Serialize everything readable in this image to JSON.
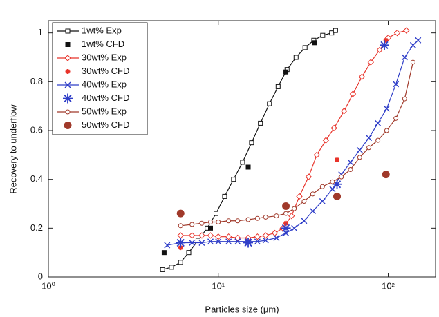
{
  "chart_data": {
    "type": "line",
    "xlabel": "Particles size (μm)",
    "ylabel": "Recovery to underflow",
    "xscale": "log",
    "xlim": [
      1,
      190
    ],
    "ylim": [
      0,
      1.05
    ],
    "xticks": [
      {
        "value": 1,
        "label": "10⁰"
      },
      {
        "value": 10,
        "label": "10¹"
      },
      {
        "value": 100,
        "label": "10²"
      }
    ],
    "yticks": [
      0,
      0.2,
      0.4,
      0.6,
      0.8,
      1
    ],
    "legend": "upper-left",
    "series": [
      {
        "name": "1wt% Exp",
        "color": "#111111",
        "marker": "square-open",
        "line": true,
        "x": [
          4.7,
          5.3,
          6,
          6.7,
          7.6,
          8.6,
          9.7,
          10.9,
          12.3,
          13.9,
          15.7,
          17.7,
          20,
          22.5,
          25.4,
          28.7,
          32.4,
          36.5,
          41.2,
          46.5,
          49
        ],
        "values": [
          0.03,
          0.04,
          0.06,
          0.1,
          0.15,
          0.2,
          0.26,
          0.33,
          0.4,
          0.47,
          0.55,
          0.63,
          0.71,
          0.78,
          0.85,
          0.9,
          0.94,
          0.97,
          0.99,
          1.0,
          1.01
        ]
      },
      {
        "name": "1wt% CFD",
        "color": "#111111",
        "marker": "square-filled",
        "line": false,
        "x": [
          4.8,
          9,
          15,
          25,
          37
        ],
        "values": [
          0.1,
          0.2,
          0.45,
          0.84,
          0.96
        ]
      },
      {
        "name": "30wt% Exp",
        "color": "#e8332a",
        "marker": "diamond-open",
        "line": true,
        "x": [
          6,
          7,
          8,
          9,
          10,
          11.5,
          13,
          15,
          17,
          19,
          21.5,
          24,
          27,
          30,
          34,
          38,
          43,
          48,
          55,
          62,
          70,
          79,
          89,
          100,
          113,
          128
        ],
        "values": [
          0.17,
          0.17,
          0.17,
          0.17,
          0.165,
          0.165,
          0.16,
          0.16,
          0.165,
          0.17,
          0.18,
          0.2,
          0.25,
          0.33,
          0.41,
          0.5,
          0.56,
          0.61,
          0.68,
          0.75,
          0.82,
          0.88,
          0.93,
          0.98,
          1.0,
          1.01
        ]
      },
      {
        "name": "30wt% CFD",
        "color": "#e8332a",
        "marker": "star-small",
        "line": false,
        "x": [
          6,
          25,
          50,
          97
        ],
        "values": [
          0.12,
          0.22,
          0.48,
          0.97
        ]
      },
      {
        "name": "40wt% Exp",
        "color": "#2f3ec8",
        "marker": "x",
        "line": true,
        "x": [
          5,
          6,
          7,
          8,
          9,
          10,
          11.5,
          13,
          15,
          17,
          19,
          22,
          25,
          28,
          32,
          36,
          41,
          47,
          53,
          60,
          68,
          77,
          87,
          98,
          111,
          125,
          140,
          150
        ],
        "values": [
          0.13,
          0.14,
          0.14,
          0.14,
          0.145,
          0.145,
          0.145,
          0.145,
          0.145,
          0.145,
          0.15,
          0.16,
          0.18,
          0.2,
          0.23,
          0.27,
          0.31,
          0.36,
          0.42,
          0.47,
          0.52,
          0.57,
          0.63,
          0.69,
          0.79,
          0.9,
          0.95,
          0.97
        ]
      },
      {
        "name": "40wt% CFD",
        "color": "#2f3ec8",
        "marker": "asterisk",
        "line": false,
        "x": [
          6,
          15,
          25,
          50,
          95
        ],
        "values": [
          0.14,
          0.14,
          0.2,
          0.38,
          0.95
        ]
      },
      {
        "name": "50wt% Exp",
        "color": "#a0392a",
        "marker": "circle-open",
        "line": true,
        "x": [
          6,
          7,
          8,
          9,
          10,
          11.5,
          13,
          15,
          17,
          19,
          22,
          25,
          28,
          32,
          36,
          41,
          47,
          53,
          60,
          68,
          77,
          87,
          98,
          111,
          125,
          140
        ],
        "values": [
          0.21,
          0.215,
          0.22,
          0.225,
          0.225,
          0.23,
          0.23,
          0.235,
          0.24,
          0.245,
          0.25,
          0.26,
          0.28,
          0.31,
          0.34,
          0.37,
          0.39,
          0.41,
          0.44,
          0.49,
          0.53,
          0.56,
          0.6,
          0.65,
          0.73,
          0.88
        ]
      },
      {
        "name": "50wt% CFD",
        "color": "#a0392a",
        "marker": "circle-filled",
        "line": false,
        "x": [
          6,
          25,
          50,
          97
        ],
        "values": [
          0.26,
          0.29,
          0.33,
          0.42
        ]
      }
    ]
  }
}
